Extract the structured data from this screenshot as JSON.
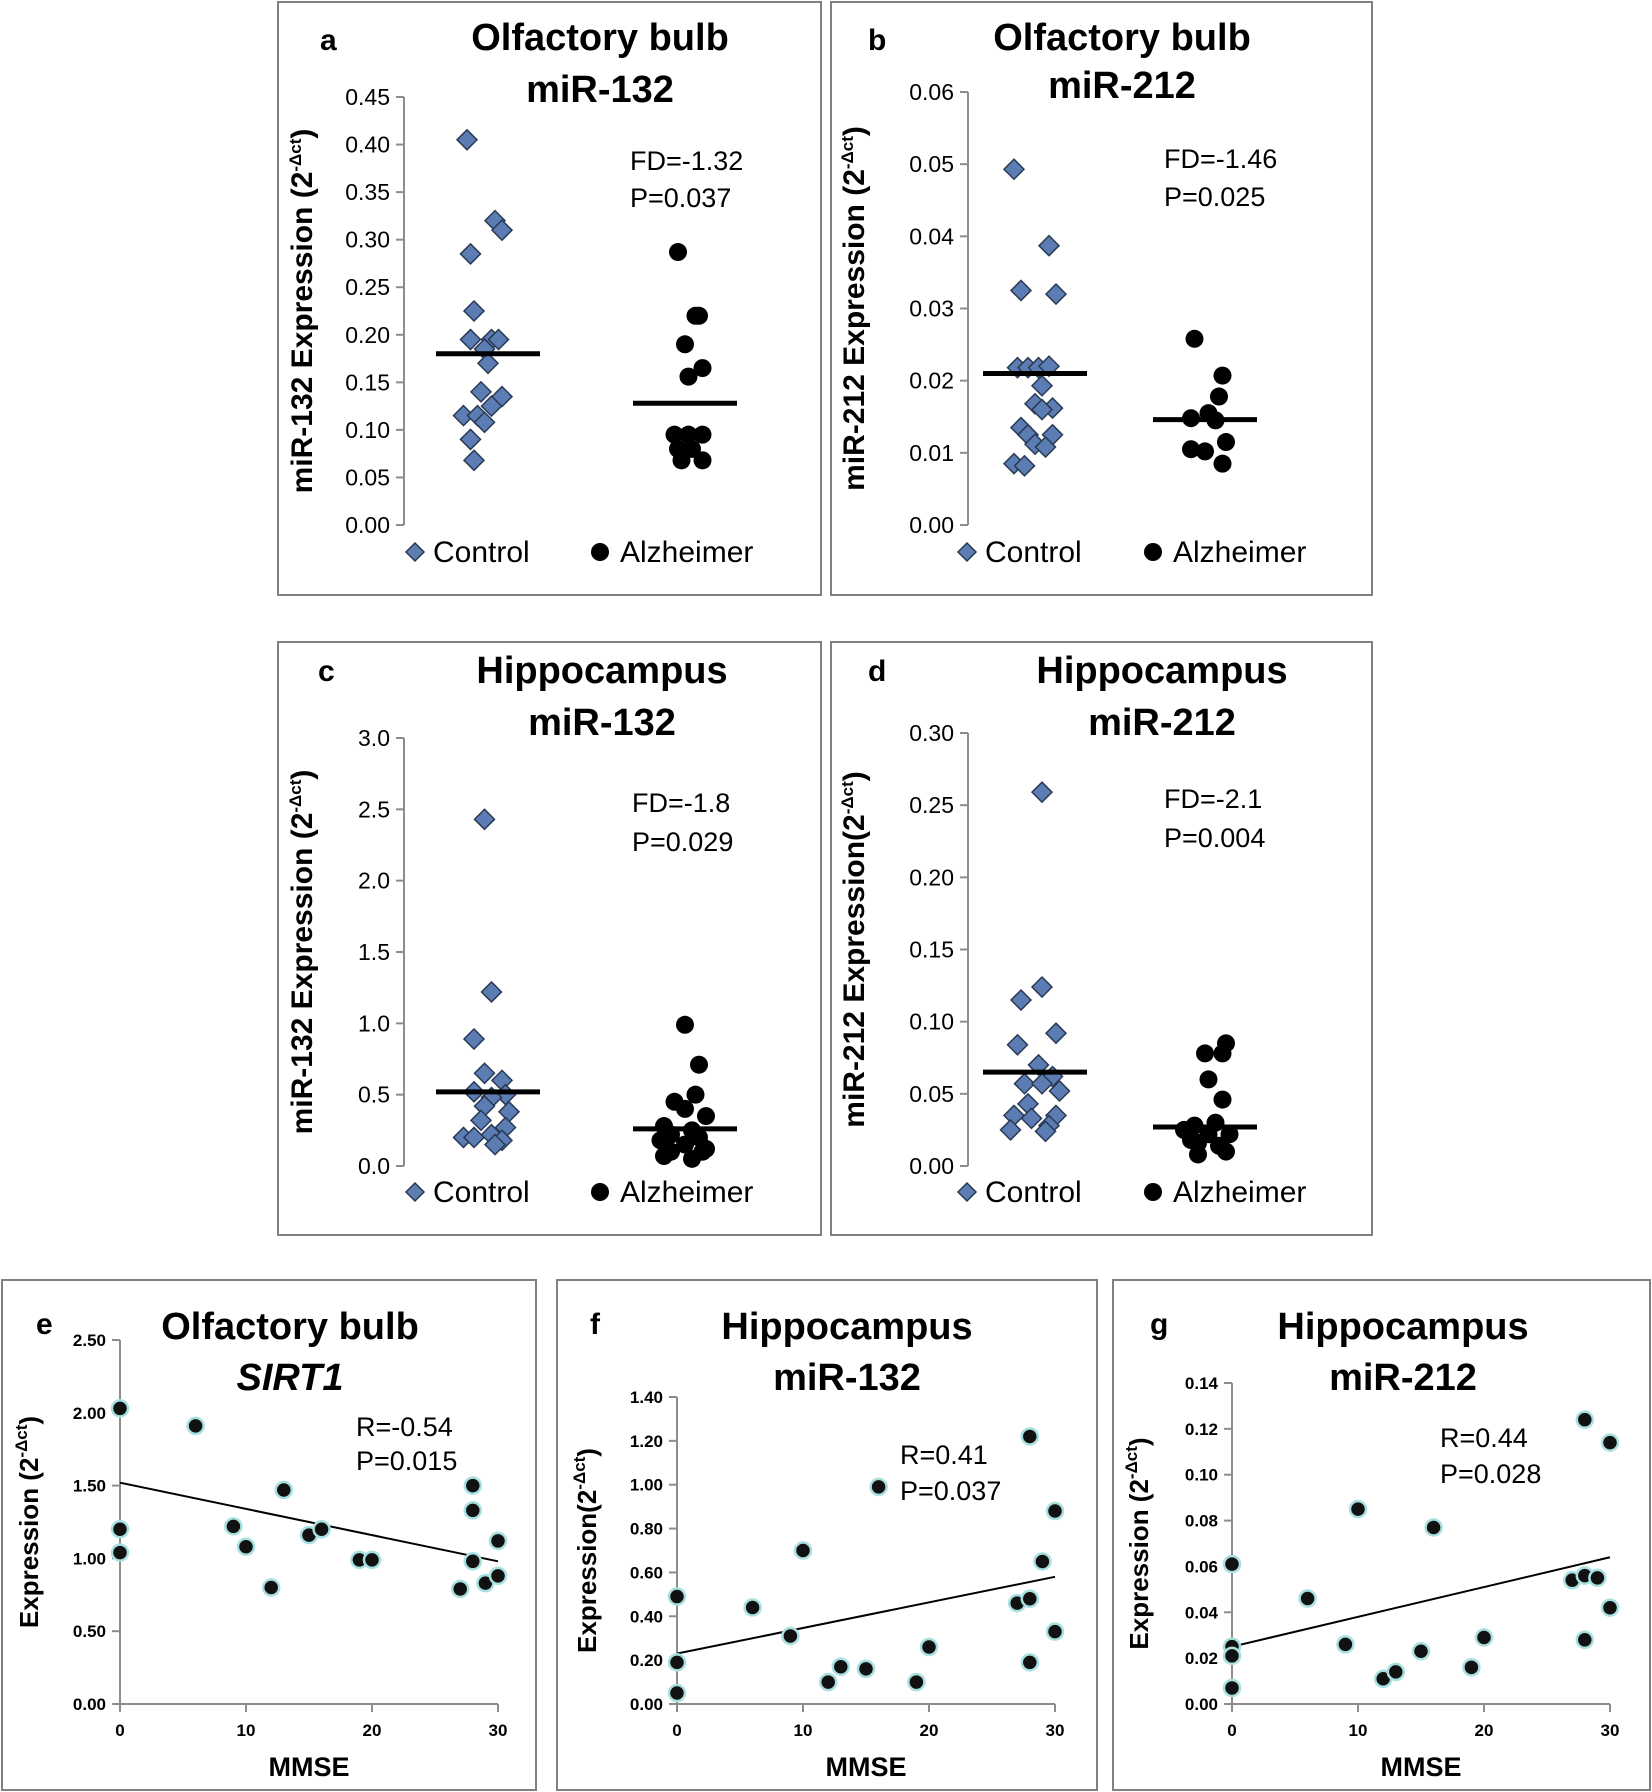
{
  "colors": {
    "control": "#5b7db3",
    "alzheimer": "#000000",
    "marker_outline": "#2a3a55",
    "corr_outline": "#a8e0e0",
    "frame": "#808080",
    "axis": "#8c8c8c"
  },
  "legend": {
    "control": "Control",
    "alzheimer": "Alzheimer"
  },
  "chart_data": [
    {
      "id": "a",
      "type": "scatter",
      "panel_letter": "a",
      "title_line1": "Olfactory bulb",
      "title_line2": "miR-132",
      "title_italic": false,
      "ylabel_main": "miR-132  Expression (2",
      "ylabel_sup": "-Δct",
      "ylabel_end": ")",
      "yrange": [
        0,
        0.45
      ],
      "ytick_labels": [
        "0.00",
        "0.05",
        "0.10",
        "0.15",
        "0.20",
        "0.25",
        "0.30",
        "0.35",
        "0.40",
        "0.45"
      ],
      "stat_line1": "FD=-1.32",
      "stat_line2": "P=0.037",
      "control": [
        [
          -0.3,
          0.405
        ],
        [
          -0.25,
          0.285
        ],
        [
          -0.2,
          0.225
        ],
        [
          0.1,
          0.32
        ],
        [
          0.2,
          0.31
        ],
        [
          -0.25,
          0.195
        ],
        [
          0.05,
          0.195
        ],
        [
          0.15,
          0.195
        ],
        [
          -0.05,
          0.185
        ],
        [
          0.0,
          0.17
        ],
        [
          -0.1,
          0.14
        ],
        [
          0.2,
          0.135
        ],
        [
          0.05,
          0.125
        ],
        [
          -0.35,
          0.115
        ],
        [
          -0.15,
          0.115
        ],
        [
          -0.05,
          0.108
        ],
        [
          -0.25,
          0.09
        ],
        [
          -0.2,
          0.068
        ]
      ],
      "control_mean": 0.18,
      "alzheimer": [
        [
          -0.1,
          0.287
        ],
        [
          0.15,
          0.22
        ],
        [
          0.2,
          0.22
        ],
        [
          0.0,
          0.19
        ],
        [
          0.05,
          0.156
        ],
        [
          0.25,
          0.165
        ],
        [
          -0.15,
          0.095
        ],
        [
          0.05,
          0.095
        ],
        [
          0.25,
          0.095
        ],
        [
          -0.1,
          0.08
        ],
        [
          0.1,
          0.08
        ],
        [
          -0.05,
          0.068
        ],
        [
          0.25,
          0.068
        ]
      ],
      "alzheimer_mean": 0.128
    },
    {
      "id": "b",
      "type": "scatter",
      "panel_letter": "b",
      "title_line1": "Olfactory bulb",
      "title_line2": "miR-212",
      "title_italic": false,
      "ylabel_main": "miR-212  Expression (2",
      "ylabel_sup": "-Δct",
      "ylabel_end": ")",
      "yrange": [
        0,
        0.06
      ],
      "ytick_labels": [
        "0.00",
        "0.01",
        "0.02",
        "0.03",
        "0.04",
        "0.05",
        "0.06"
      ],
      "stat_line1": "FD=-1.46",
      "stat_line2": "P=0.025",
      "control": [
        [
          -0.3,
          0.0493
        ],
        [
          0.2,
          0.0387
        ],
        [
          -0.2,
          0.0325
        ],
        [
          0.3,
          0.032
        ],
        [
          -0.25,
          0.0218
        ],
        [
          -0.1,
          0.0218
        ],
        [
          0.05,
          0.0218
        ],
        [
          0.2,
          0.022
        ],
        [
          0.1,
          0.0193
        ],
        [
          0.0,
          0.0168
        ],
        [
          0.25,
          0.0162
        ],
        [
          0.1,
          0.016
        ],
        [
          -0.2,
          0.0135
        ],
        [
          0.25,
          0.0125
        ],
        [
          -0.1,
          0.0125
        ],
        [
          0.0,
          0.0112
        ],
        [
          0.15,
          0.0108
        ],
        [
          -0.3,
          0.0085
        ],
        [
          -0.15,
          0.0082
        ]
      ],
      "control_mean": 0.021,
      "alzheimer": [
        [
          -0.15,
          0.0258
        ],
        [
          0.25,
          0.0207
        ],
        [
          0.2,
          0.0178
        ],
        [
          0.05,
          0.0155
        ],
        [
          -0.2,
          0.0148
        ],
        [
          0.15,
          0.0145
        ],
        [
          0.3,
          0.0115
        ],
        [
          -0.2,
          0.0105
        ],
        [
          0.0,
          0.0102
        ],
        [
          0.25,
          0.0085
        ]
      ],
      "alzheimer_mean": 0.0146
    },
    {
      "id": "c",
      "type": "scatter",
      "panel_letter": "c",
      "title_line1": "Hippocampus",
      "title_line2": "miR-132",
      "title_italic": false,
      "ylabel_main": "miR-132  Expression  (2",
      "ylabel_sup": "-Δct",
      "ylabel_end": ")",
      "yrange": [
        0,
        3.0
      ],
      "ytick_labels": [
        "0.0",
        "0.5",
        "1.0",
        "1.5",
        "2.0",
        "2.5",
        "3.0"
      ],
      "stat_line1": "FD=-1.8",
      "stat_line2": "P=0.029",
      "control": [
        [
          -0.05,
          2.43
        ],
        [
          0.05,
          1.22
        ],
        [
          -0.2,
          0.89
        ],
        [
          -0.05,
          0.65
        ],
        [
          0.2,
          0.6
        ],
        [
          -0.2,
          0.52
        ],
        [
          0.25,
          0.5
        ],
        [
          0.05,
          0.48
        ],
        [
          -0.05,
          0.42
        ],
        [
          0.3,
          0.38
        ],
        [
          0.25,
          0.27
        ],
        [
          -0.1,
          0.32
        ],
        [
          0.05,
          0.22
        ],
        [
          -0.35,
          0.2
        ],
        [
          -0.2,
          0.2
        ],
        [
          0.2,
          0.18
        ],
        [
          0.1,
          0.15
        ]
      ],
      "control_mean": 0.52,
      "alzheimer": [
        [
          0.0,
          0.99
        ],
        [
          0.2,
          0.71
        ],
        [
          0.15,
          0.5
        ],
        [
          -0.15,
          0.45
        ],
        [
          0.0,
          0.4
        ],
        [
          0.3,
          0.35
        ],
        [
          -0.3,
          0.28
        ],
        [
          0.1,
          0.25
        ],
        [
          -0.2,
          0.22
        ],
        [
          0.2,
          0.2
        ],
        [
          -0.35,
          0.18
        ],
        [
          0.0,
          0.15
        ],
        [
          0.3,
          0.12
        ],
        [
          0.25,
          0.1
        ],
        [
          -0.2,
          0.1
        ],
        [
          -0.3,
          0.07
        ],
        [
          0.1,
          0.05
        ]
      ],
      "alzheimer_mean": 0.26
    },
    {
      "id": "d",
      "type": "scatter",
      "panel_letter": "d",
      "title_line1": "Hippocampus",
      "title_line2": "miR-212",
      "title_italic": false,
      "ylabel_main": "miR-212  Expression(2",
      "ylabel_sup": "-Δct",
      "ylabel_end": ")",
      "yrange": [
        0,
        0.3
      ],
      "ytick_labels": [
        "0.00",
        "0.05",
        "0.10",
        "0.15",
        "0.20",
        "0.25",
        "0.30"
      ],
      "stat_line1": "FD=-2.1",
      "stat_line2": "P=0.004",
      "control": [
        [
          0.1,
          0.259
        ],
        [
          0.1,
          0.124
        ],
        [
          -0.2,
          0.115
        ],
        [
          -0.25,
          0.084
        ],
        [
          0.3,
          0.092
        ],
        [
          0.05,
          0.07
        ],
        [
          0.25,
          0.062
        ],
        [
          -0.15,
          0.057
        ],
        [
          0.1,
          0.057
        ],
        [
          0.35,
          0.052
        ],
        [
          -0.1,
          0.043
        ],
        [
          -0.3,
          0.035
        ],
        [
          0.3,
          0.035
        ],
        [
          -0.05,
          0.033
        ],
        [
          0.2,
          0.028
        ],
        [
          -0.35,
          0.025
        ],
        [
          0.15,
          0.024
        ]
      ],
      "control_mean": 0.065,
      "alzheimer": [
        [
          0.3,
          0.085
        ],
        [
          0.0,
          0.078
        ],
        [
          0.25,
          0.078
        ],
        [
          0.05,
          0.06
        ],
        [
          0.25,
          0.046
        ],
        [
          0.15,
          0.03
        ],
        [
          -0.15,
          0.028
        ],
        [
          -0.3,
          0.025
        ],
        [
          0.05,
          0.022
        ],
        [
          0.35,
          0.022
        ],
        [
          -0.2,
          0.018
        ],
        [
          -0.1,
          0.016
        ],
        [
          0.2,
          0.014
        ],
        [
          0.3,
          0.01
        ],
        [
          -0.1,
          0.008
        ]
      ],
      "alzheimer_mean": 0.027
    },
    {
      "id": "e",
      "type": "scatter",
      "panel_letter": "e",
      "title_line1": "Olfactory bulb",
      "title_line2": "SIRT1",
      "title_italic": true,
      "ylabel_main": "Expression (2",
      "ylabel_sup": "-Δct",
      "ylabel_end": ")",
      "xlabel": "MMSE",
      "xrange": [
        0,
        30
      ],
      "yrange": [
        0,
        2.5
      ],
      "xtick_labels": [
        "0",
        "10",
        "20",
        "30"
      ],
      "ytick_labels": [
        "0.00",
        "0.50",
        "1.00",
        "1.50",
        "2.00",
        "2.50"
      ],
      "stat_line1": "R=-0.54",
      "stat_line2": "P=0.015",
      "points": [
        [
          0,
          2.03
        ],
        [
          0,
          1.2
        ],
        [
          0,
          1.04
        ],
        [
          6,
          1.91
        ],
        [
          9,
          1.22
        ],
        [
          10,
          1.08
        ],
        [
          12,
          0.8
        ],
        [
          13,
          1.47
        ],
        [
          15,
          1.16
        ],
        [
          16,
          1.2
        ],
        [
          19,
          0.99
        ],
        [
          20,
          0.99
        ],
        [
          27,
          0.79
        ],
        [
          28,
          1.5
        ],
        [
          28,
          1.33
        ],
        [
          28,
          0.98
        ],
        [
          29,
          0.83
        ],
        [
          30,
          1.12
        ],
        [
          30,
          0.88
        ]
      ],
      "fit": [
        1.52,
        0.98
      ]
    },
    {
      "id": "f",
      "type": "scatter",
      "panel_letter": "f",
      "title_line1": "Hippocampus",
      "title_line2": "miR-132",
      "title_italic": false,
      "ylabel_main": "Expression(2",
      "ylabel_sup": "-Δct",
      "ylabel_end": ")",
      "xlabel": "MMSE",
      "xrange": [
        0,
        30
      ],
      "yrange": [
        0,
        1.4
      ],
      "xtick_labels": [
        "0",
        "10",
        "20",
        "30"
      ],
      "ytick_labels": [
        "0.00",
        "0.20",
        "0.40",
        "0.60",
        "0.80",
        "1.00",
        "1.20",
        "1.40"
      ],
      "stat_line1": "R=0.41",
      "stat_line2": "P=0.037",
      "points": [
        [
          0,
          0.49
        ],
        [
          0,
          0.19
        ],
        [
          0,
          0.05
        ],
        [
          6,
          0.44
        ],
        [
          9,
          0.31
        ],
        [
          10,
          0.7
        ],
        [
          12,
          0.1
        ],
        [
          13,
          0.17
        ],
        [
          15,
          0.16
        ],
        [
          16,
          0.99
        ],
        [
          19,
          0.1
        ],
        [
          20,
          0.26
        ],
        [
          27,
          0.46
        ],
        [
          28,
          1.22
        ],
        [
          28,
          0.48
        ],
        [
          28,
          0.19
        ],
        [
          29,
          0.65
        ],
        [
          30,
          0.88
        ],
        [
          30,
          0.33
        ]
      ],
      "fit": [
        0.23,
        0.58
      ]
    },
    {
      "id": "g",
      "type": "scatter",
      "panel_letter": "g",
      "title_line1": "Hippocampus",
      "title_line2": "miR-212",
      "title_italic": false,
      "ylabel_main": "Expression (2",
      "ylabel_sup": "-Δct",
      "ylabel_end": ")",
      "xlabel": "MMSE",
      "xrange": [
        0,
        30
      ],
      "yrange": [
        0,
        0.14
      ],
      "xtick_labels": [
        "0",
        "10",
        "20",
        "30"
      ],
      "ytick_labels": [
        "0.00",
        "0.02",
        "0.04",
        "0.06",
        "0.08",
        "0.10",
        "0.12",
        "0.14"
      ],
      "stat_line1": "R=0.44",
      "stat_line2": "P=0.028",
      "points": [
        [
          0,
          0.061
        ],
        [
          0,
          0.025
        ],
        [
          0,
          0.021
        ],
        [
          0,
          0.007
        ],
        [
          6,
          0.046
        ],
        [
          10,
          0.085
        ],
        [
          9,
          0.026
        ],
        [
          12,
          0.011
        ],
        [
          13,
          0.014
        ],
        [
          15,
          0.023
        ],
        [
          16,
          0.077
        ],
        [
          19,
          0.016
        ],
        [
          20,
          0.029
        ],
        [
          27,
          0.054
        ],
        [
          28,
          0.124
        ],
        [
          28,
          0.056
        ],
        [
          28,
          0.028
        ],
        [
          29,
          0.055
        ],
        [
          30,
          0.114
        ],
        [
          30,
          0.042
        ]
      ],
      "fit": [
        0.025,
        0.064
      ]
    }
  ]
}
